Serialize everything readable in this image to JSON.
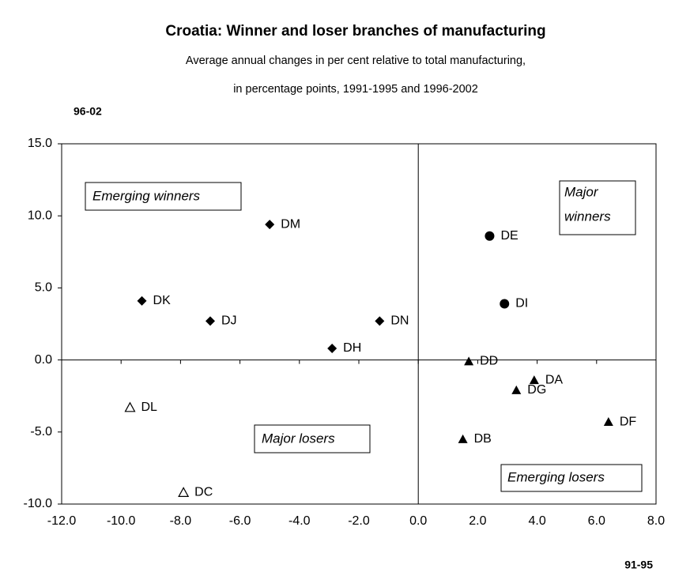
{
  "chart_data": {
    "type": "scatter",
    "title": "Croatia: Winner and loser branches of manufacturing",
    "subtitle": [
      "Average annual changes in per cent relative to total manufacturing,",
      "in percentage points, 1991-1995 and 1996-2002"
    ],
    "x_label": "91-95",
    "y_label": "96-02",
    "xlim": [
      -12,
      8
    ],
    "ylim": [
      -10,
      15
    ],
    "xticks": [
      {
        "value": -12,
        "label": "-12.0"
      },
      {
        "value": -10,
        "label": "-10.0"
      },
      {
        "value": -8,
        "label": "-8.0"
      },
      {
        "value": -6,
        "label": "-6.0"
      },
      {
        "value": -4,
        "label": "-4.0"
      },
      {
        "value": -2,
        "label": "-2.0"
      },
      {
        "value": 0,
        "label": "0.0"
      },
      {
        "value": 2,
        "label": "2.0"
      },
      {
        "value": 4,
        "label": "4.0"
      },
      {
        "value": 6,
        "label": "6.0"
      },
      {
        "value": 8,
        "label": "8.0"
      }
    ],
    "yticks": [
      {
        "value": -10,
        "label": "-10.0"
      },
      {
        "value": -5,
        "label": "-5.0"
      },
      {
        "value": 0,
        "label": "0.0"
      },
      {
        "value": 5,
        "label": "5.0"
      },
      {
        "value": 10,
        "label": "10.0"
      },
      {
        "value": 15,
        "label": "15.0"
      }
    ],
    "grid": false,
    "series": [
      {
        "marker": "diamond",
        "color": "#000000",
        "labels": [
          "DM",
          "DK",
          "DJ",
          "DN",
          "DH"
        ],
        "x": [
          -5.0,
          -9.3,
          -7.0,
          -1.3,
          -2.9
        ],
        "values": [
          9.4,
          4.1,
          2.7,
          2.7,
          0.8
        ]
      },
      {
        "marker": "circle",
        "color": "#000000",
        "labels": [
          "DE",
          "DI"
        ],
        "x": [
          2.4,
          2.9
        ],
        "values": [
          8.6,
          3.9
        ]
      },
      {
        "marker": "triangle",
        "color": "#000000",
        "labels": [
          "DD",
          "DA",
          "DG",
          "DF",
          "DB"
        ],
        "x": [
          1.7,
          3.9,
          3.3,
          6.4,
          1.5
        ],
        "values": [
          -0.1,
          -1.4,
          -2.1,
          -4.3,
          -5.5
        ]
      },
      {
        "marker": "triangle-open",
        "color": "#000000",
        "labels": [
          "DL",
          "DC"
        ],
        "x": [
          -9.7,
          -7.9
        ],
        "values": [
          -3.3,
          -9.2
        ]
      }
    ],
    "annotations": [
      [
        "Emerging winners"
      ],
      [
        "Major",
        "winners"
      ],
      [
        "Major losers"
      ],
      [
        "Emerging losers"
      ]
    ]
  }
}
